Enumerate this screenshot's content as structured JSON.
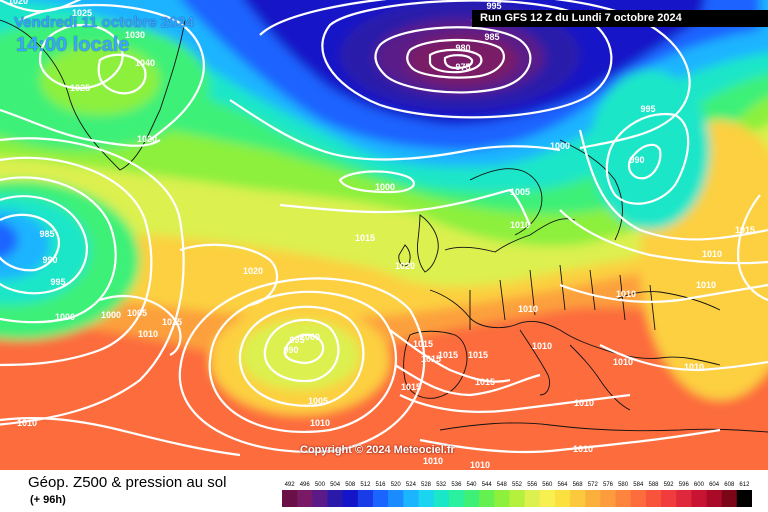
{
  "header": {
    "date_label": "Vendredi 11 octobre 2024",
    "time_label": "14:00 locale",
    "run_label": "Run GFS 12 Z du Lundi 7 octobre 2024"
  },
  "copyright": "Copyright © 2024 Meteociel.fr",
  "footer": {
    "title": "Géop. Z500 & pression au sol",
    "subtitle": "(+ 96h)"
  },
  "legend": {
    "values": [
      "492",
      "496",
      "500",
      "504",
      "508",
      "512",
      "516",
      "520",
      "524",
      "528",
      "532",
      "536",
      "540",
      "544",
      "548",
      "552",
      "556",
      "560",
      "564",
      "568",
      "572",
      "576",
      "580",
      "584",
      "588",
      "592",
      "596",
      "600",
      "604",
      "608",
      "612"
    ],
    "colors": [
      "#6a1046",
      "#7a1a66",
      "#5a1a88",
      "#2a1aaa",
      "#1414c8",
      "#1a3ce8",
      "#1a64ff",
      "#1a8cff",
      "#1ab4ff",
      "#1ad4f0",
      "#1ae6c8",
      "#2af0a0",
      "#3cf078",
      "#64f050",
      "#8cf03c",
      "#b4f03c",
      "#dcf050",
      "#f8f050",
      "#fce040",
      "#fcc83c",
      "#fcb03c",
      "#fc9c3c",
      "#fc843c",
      "#fc6c3c",
      "#f8543c",
      "#f03c3c",
      "#e0283c",
      "#c81432",
      "#a80a28",
      "#7a0618",
      "#000000"
    ]
  },
  "isobars": [
    {
      "text": "1020",
      "area": "top-left"
    },
    {
      "text": "1025",
      "area": "greenland-north"
    },
    {
      "text": "1030",
      "area": "greenland"
    },
    {
      "text": "1040",
      "area": "greenland"
    },
    {
      "text": "1025",
      "area": "greenland-west"
    },
    {
      "text": "1020",
      "area": "greenland-south"
    },
    {
      "text": "995",
      "area": "iceland-low"
    },
    {
      "text": "985",
      "area": "iceland-low"
    },
    {
      "text": "980",
      "area": "iceland-low"
    },
    {
      "text": "975",
      "area": "iceland-low-center"
    },
    {
      "text": "9",
      "area": "iceland-low"
    },
    {
      "text": "1000",
      "area": "norwegian-sea"
    },
    {
      "text": "1000",
      "area": "north-atlantic"
    },
    {
      "text": "995",
      "area": "scandinavia"
    },
    {
      "text": "990",
      "area": "scandinavia"
    },
    {
      "text": "1005",
      "area": "north-sea"
    },
    {
      "text": "1010",
      "area": "north-sea"
    },
    {
      "text": "1015",
      "area": "east"
    },
    {
      "text": "1010",
      "area": "east"
    },
    {
      "text": "1010",
      "area": "east"
    },
    {
      "text": "985",
      "area": "west-low"
    },
    {
      "text": "990",
      "area": "west-low"
    },
    {
      "text": "995",
      "area": "west-low"
    },
    {
      "text": "1000",
      "area": "west-low"
    },
    {
      "text": "1000",
      "area": "mid-atlantic"
    },
    {
      "text": "1005",
      "area": "mid-atlantic"
    },
    {
      "text": "1010",
      "area": "mid-atlantic"
    },
    {
      "text": "1015",
      "area": "mid-atlantic"
    },
    {
      "text": "1015",
      "area": "mid-atlantic"
    },
    {
      "text": "1020",
      "area": "mid-atlantic"
    },
    {
      "text": "1020",
      "area": "uk"
    },
    {
      "text": "1010",
      "area": "central-europe"
    },
    {
      "text": "1010",
      "area": "central-europe"
    },
    {
      "text": "1010",
      "area": "central-europe"
    },
    {
      "text": "1010",
      "area": "balkans"
    },
    {
      "text": "1010",
      "area": "balkans"
    },
    {
      "text": "1010",
      "area": "balkans"
    },
    {
      "text": "1000",
      "area": "azores-low"
    },
    {
      "text": "995",
      "area": "azores-low"
    },
    {
      "text": "990",
      "area": "azores-low"
    },
    {
      "text": "1005",
      "area": "azores-low"
    },
    {
      "text": "1010",
      "area": "azores-low"
    },
    {
      "text": "1015",
      "area": "iberia"
    },
    {
      "text": "1015",
      "area": "iberia"
    },
    {
      "text": "1015",
      "area": "iberia"
    },
    {
      "text": "1015",
      "area": "iberia"
    },
    {
      "text": "1015",
      "area": "iberia"
    },
    {
      "text": "1015",
      "area": "iberia"
    },
    {
      "text": "1010",
      "area": "south-west"
    },
    {
      "text": "1010",
      "area": "north-africa"
    },
    {
      "text": "1010",
      "area": "north-africa"
    },
    {
      "text": "1010",
      "area": "north-africa"
    }
  ]
}
